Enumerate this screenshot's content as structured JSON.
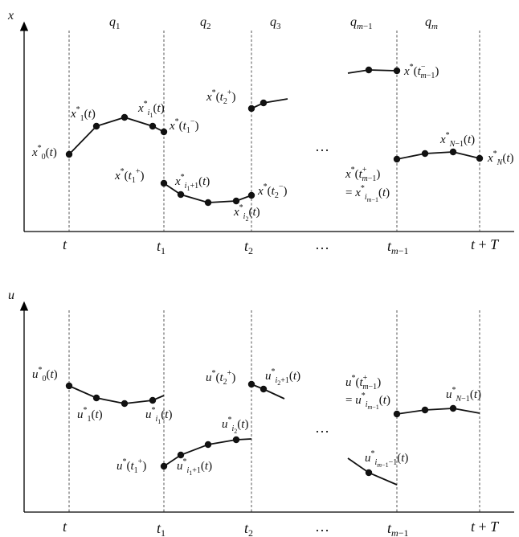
{
  "top_panel": {
    "y_axis_label": "x",
    "modes": [
      "q1",
      "q2",
      "q3",
      "q_{m−1}",
      "q_m"
    ],
    "time_ticks": [
      "t",
      "t1",
      "t2",
      "…",
      "t_{m−1}",
      "t + T"
    ],
    "ellipsis": "…",
    "labels": {
      "x0": "x*0(t)",
      "x1": "x*1(t)",
      "xi1": "x*i1(t)",
      "x_t1_minus": "x*(t1−)",
      "x_t1_plus": "x*(t1+)",
      "xi1p1": "x*i1+1(t)",
      "xi2": "x*i2(t)",
      "x_t2_minus": "x*(t2−)",
      "x_t2_plus": "x*(t2+)",
      "x_tm1_minus": "x*(t−m−1)",
      "x_tm1_plus": "x*(t+m−1)",
      "x_tm1_eq": "= x*i_{m−1}(t)",
      "xNm1": "x*N−1(t)",
      "xN": "x*N(t)"
    }
  },
  "bottom_panel": {
    "y_axis_label": "u",
    "time_ticks": [
      "t",
      "t1",
      "t2",
      "…",
      "t_{m−1}",
      "t + T"
    ],
    "ellipsis": "…",
    "labels": {
      "u0": "u*0(t)",
      "u1": "u*1(t)",
      "ui1": "u*i1(t)",
      "u_t1_plus": "u*(t1+)",
      "ui1p1": "u*i1+1(t)",
      "ui2": "u*i2(t)",
      "u_t2_plus": "u*(t2+)",
      "ui2p1": "u*i2+1(t)",
      "u_tm1_plus": "u*(t+m−1)",
      "u_tm1_eq": "= u*i_{m−1}(t)",
      "uNm1": "u*N−1(t)",
      "uim1m1": "u*i_{m−1}−1(t)"
    }
  }
}
